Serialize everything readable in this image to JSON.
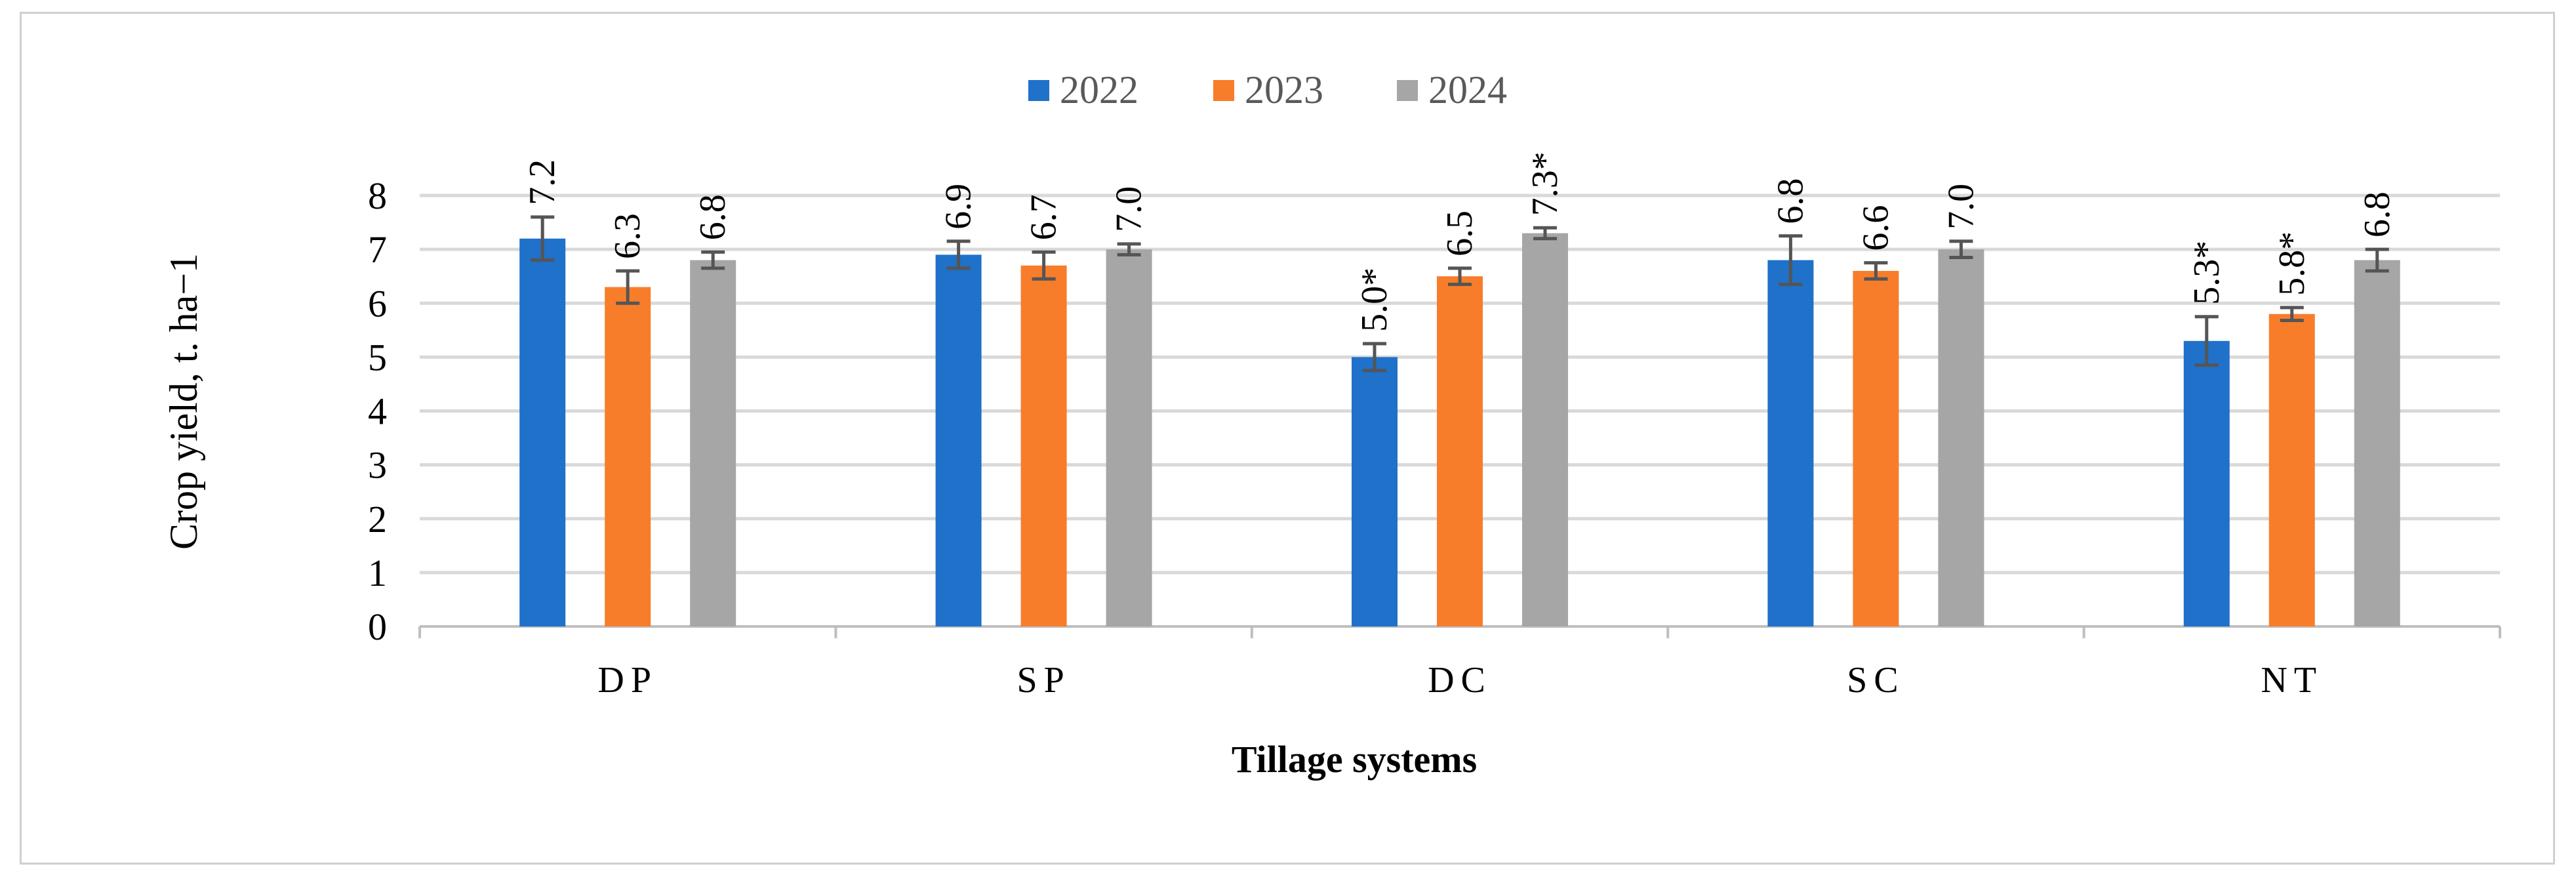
{
  "chart_data": {
    "type": "bar",
    "title": "",
    "xlabel": "Tillage systems",
    "ylabel": "Crop yield, t. ha−1",
    "categories": [
      "DP",
      "SP",
      "DC",
      "SC",
      "NT"
    ],
    "ylim": [
      0,
      8
    ],
    "yticks": [
      "0",
      "1",
      "2",
      "3",
      "4",
      "5",
      "6",
      "7",
      "8"
    ],
    "grid": true,
    "legend_position": "top-center",
    "series": [
      {
        "name": "2022",
        "color": "#1f71c9",
        "values": [
          7.2,
          6.9,
          5.0,
          6.8,
          5.3
        ],
        "errors": [
          0.4,
          0.25,
          0.25,
          0.45,
          0.45
        ],
        "labels": [
          "7.2",
          "6.9",
          "5.0*",
          "6.8",
          "5.3*"
        ]
      },
      {
        "name": "2023",
        "color": "#f87d2a",
        "values": [
          6.3,
          6.7,
          6.5,
          6.6,
          5.8
        ],
        "errors": [
          0.3,
          0.25,
          0.15,
          0.15,
          0.12
        ],
        "labels": [
          "6.3",
          "6.7",
          "6.5",
          "6.6",
          "5.8*"
        ]
      },
      {
        "name": "2024",
        "color": "#a6a6a6",
        "values": [
          6.8,
          7.0,
          7.3,
          7.0,
          6.8
        ],
        "errors": [
          0.15,
          0.1,
          0.1,
          0.15,
          0.2
        ],
        "labels": [
          "6.8",
          "7.0",
          "7.3*",
          "7.0",
          "6.8"
        ]
      }
    ]
  }
}
